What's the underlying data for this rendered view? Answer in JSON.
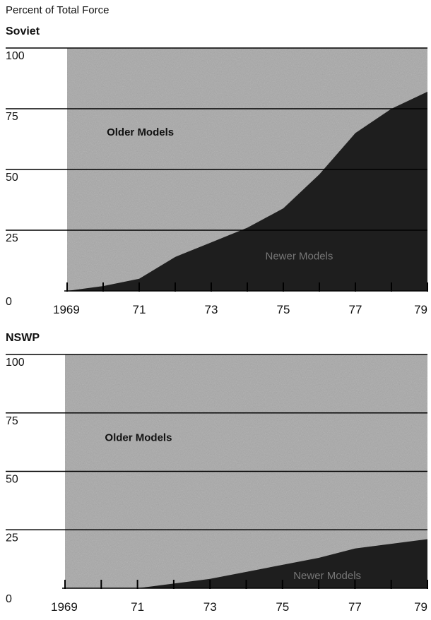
{
  "ylabel": "Percent of Total Force",
  "chart_data": [
    {
      "type": "area",
      "title": "Soviet",
      "ylabel": "Percent of Total Force",
      "x_ticks": [
        "1969",
        "71",
        "73",
        "75",
        "77",
        "79"
      ],
      "y_ticks": [
        "0",
        "25",
        "50",
        "75",
        "100"
      ],
      "xlim": [
        1969,
        1979
      ],
      "ylim": [
        0,
        100
      ],
      "x": [
        1969,
        1970,
        1971,
        1972,
        1973,
        1974,
        1975,
        1976,
        1977,
        1978,
        1979
      ],
      "series": [
        {
          "name": "Newer Models",
          "values": [
            0,
            2,
            5,
            14,
            20,
            26,
            34,
            48,
            65,
            75,
            82
          ]
        },
        {
          "name": "Older Models",
          "values": [
            100,
            98,
            95,
            86,
            80,
            74,
            66,
            52,
            35,
            25,
            18
          ]
        }
      ],
      "grid": true,
      "colors": {
        "older": "#a8a8a8",
        "newer": "#1e1e1e"
      }
    },
    {
      "type": "area",
      "title": "NSWP",
      "ylabel": "",
      "x_ticks": [
        "1969",
        "71",
        "73",
        "75",
        "77",
        "79"
      ],
      "y_ticks": [
        "0",
        "25",
        "50",
        "75",
        "100"
      ],
      "xlim": [
        1969,
        1979
      ],
      "ylim": [
        0,
        100
      ],
      "x": [
        1969,
        1970,
        1971,
        1972,
        1973,
        1974,
        1975,
        1976,
        1977,
        1978,
        1979
      ],
      "series": [
        {
          "name": "Newer Models",
          "values": [
            0,
            0,
            0,
            2,
            4,
            7,
            10,
            13,
            17,
            19,
            21
          ]
        },
        {
          "name": "Older Models",
          "values": [
            100,
            100,
            100,
            98,
            96,
            93,
            90,
            87,
            83,
            81,
            79
          ]
        }
      ],
      "grid": true,
      "colors": {
        "older": "#a8a8a8",
        "newer": "#1e1e1e"
      }
    }
  ]
}
